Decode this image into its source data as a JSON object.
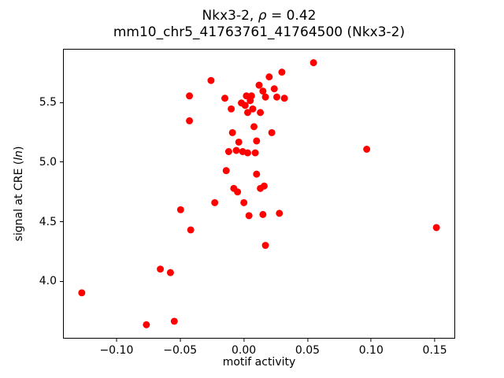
{
  "figure": {
    "title_prefix": "Nkx3-2, ",
    "title_rho": "ρ",
    "title_suffix": " = 0.42",
    "title_line2": "mm10_chr5_41763761_41764500 (Nkx3-2)",
    "xlabel": "motif activity",
    "ylabel_prefix": "signal at CRE (",
    "ylabel_italic": "ln",
    "ylabel_suffix": ")"
  },
  "chart_data": {
    "type": "scatter",
    "title": "Nkx3-2, ρ = 0.42\nmm10_chr5_41763761_41764500 (Nkx3-2)",
    "xlabel": "motif activity",
    "ylabel": "signal at CRE (ln)",
    "marker_color": "#ff0000",
    "marker_radius": 4.5,
    "grid": false,
    "legend": "none",
    "xlim": [
      -0.142,
      0.166
    ],
    "ylim": [
      3.52,
      5.95
    ],
    "x_ticks": [
      {
        "value": -0.1,
        "label": "−0.10"
      },
      {
        "value": -0.05,
        "label": "−0.05"
      },
      {
        "value": 0.0,
        "label": "0.00"
      },
      {
        "value": 0.05,
        "label": "0.05"
      },
      {
        "value": 0.1,
        "label": "0.10"
      },
      {
        "value": 0.15,
        "label": "0.15"
      }
    ],
    "y_ticks": [
      {
        "value": 4.0,
        "label": "4.0"
      },
      {
        "value": 4.5,
        "label": "4.5"
      },
      {
        "value": 5.0,
        "label": "5.0"
      },
      {
        "value": 5.5,
        "label": "5.5"
      }
    ],
    "points": [
      [
        -0.128,
        3.9
      ],
      [
        -0.077,
        3.63
      ],
      [
        -0.066,
        4.1
      ],
      [
        -0.058,
        4.07
      ],
      [
        -0.055,
        3.66
      ],
      [
        -0.05,
        4.6
      ],
      [
        -0.043,
        5.56
      ],
      [
        -0.043,
        5.35
      ],
      [
        -0.042,
        4.43
      ],
      [
        -0.026,
        5.69
      ],
      [
        -0.023,
        4.66
      ],
      [
        -0.015,
        5.54
      ],
      [
        -0.014,
        4.93
      ],
      [
        -0.012,
        5.09
      ],
      [
        -0.01,
        5.45
      ],
      [
        -0.009,
        5.25
      ],
      [
        -0.008,
        4.78
      ],
      [
        -0.006,
        5.1
      ],
      [
        -0.005,
        4.75
      ],
      [
        -0.004,
        5.17
      ],
      [
        -0.002,
        5.5
      ],
      [
        -0.001,
        5.09
      ],
      [
        0.0,
        4.66
      ],
      [
        0.001,
        5.48
      ],
      [
        0.002,
        5.56
      ],
      [
        0.003,
        5.42
      ],
      [
        0.003,
        5.08
      ],
      [
        0.004,
        4.55
      ],
      [
        0.005,
        5.52
      ],
      [
        0.006,
        5.56
      ],
      [
        0.007,
        5.45
      ],
      [
        0.008,
        5.3
      ],
      [
        0.009,
        5.08
      ],
      [
        0.01,
        4.9
      ],
      [
        0.01,
        5.18
      ],
      [
        0.012,
        5.65
      ],
      [
        0.013,
        5.42
      ],
      [
        0.013,
        4.78
      ],
      [
        0.015,
        5.6
      ],
      [
        0.015,
        4.56
      ],
      [
        0.016,
        4.8
      ],
      [
        0.017,
        5.55
      ],
      [
        0.017,
        4.3
      ],
      [
        0.02,
        5.72
      ],
      [
        0.022,
        5.25
      ],
      [
        0.024,
        5.62
      ],
      [
        0.026,
        5.55
      ],
      [
        0.028,
        4.57
      ],
      [
        0.03,
        5.76
      ],
      [
        0.032,
        5.54
      ],
      [
        0.055,
        5.84
      ],
      [
        0.097,
        5.11
      ],
      [
        0.152,
        4.45
      ]
    ]
  }
}
